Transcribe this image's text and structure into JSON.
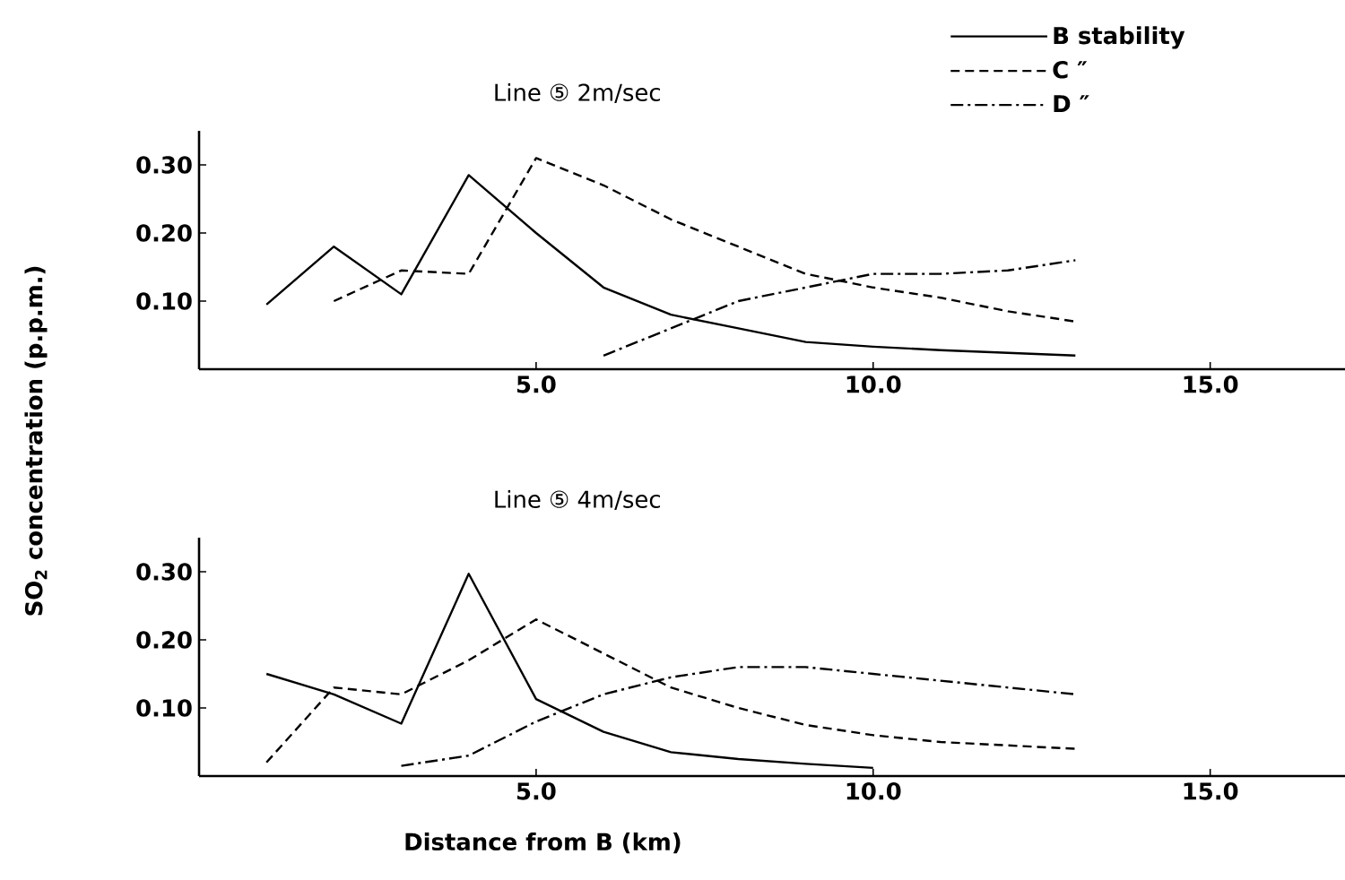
{
  "chart_data": [
    {
      "type": "line",
      "title": "Line ⑤    2m/sec",
      "ylabel": "SO$_{2}$ concentration (p.p.m.)",
      "xlim": [
        0,
        17
      ],
      "ylim": [
        0,
        0.35
      ],
      "xticks": [
        {
          "value": 5,
          "label": "5.0"
        },
        {
          "value": 10,
          "label": "10.0"
        },
        {
          "value": 15,
          "label": "15.0"
        }
      ],
      "yticks": [
        {
          "value": 0.1,
          "label": "0.10"
        },
        {
          "value": 0.2,
          "label": "0.20"
        },
        {
          "value": 0.3,
          "label": "0.30"
        }
      ],
      "grid": false,
      "legend": "top right",
      "marker": "none",
      "series": [
        {
          "name": "B stability",
          "color": "#000000",
          "line_style": "solid",
          "x": [
            1,
            2,
            3,
            4,
            5,
            6,
            7,
            8,
            9,
            10,
            11,
            12,
            13
          ],
          "values": [
            0.095,
            0.18,
            0.11,
            0.285,
            0.2,
            0.12,
            0.08,
            0.06,
            0.04,
            0.033,
            0.028,
            0.024,
            0.02
          ]
        },
        {
          "name": "C          ″",
          "color": "#000000",
          "line_style": "dashed",
          "x": [
            2,
            3,
            4,
            5,
            6,
            7,
            8,
            9,
            10,
            11,
            12,
            13
          ],
          "values": [
            0.1,
            0.145,
            0.14,
            0.31,
            0.27,
            0.22,
            0.18,
            0.14,
            0.12,
            0.105,
            0.085,
            0.07
          ]
        },
        {
          "name": "D          ″",
          "color": "#000000",
          "line_style": "dashdot",
          "x": [
            6,
            7,
            8,
            9,
            10,
            11,
            12,
            13
          ],
          "values": [
            0.02,
            0.06,
            0.1,
            0.12,
            0.14,
            0.14,
            0.145,
            0.16
          ]
        }
      ]
    },
    {
      "type": "line",
      "title": "Line ⑤    4m/sec",
      "xlabel": "Distance from B (km)",
      "xlim": [
        0,
        17
      ],
      "ylim": [
        0,
        0.35
      ],
      "xticks": [
        {
          "value": 5,
          "label": "5.0"
        },
        {
          "value": 10,
          "label": "10.0"
        },
        {
          "value": 15,
          "label": "15.0"
        }
      ],
      "yticks": [
        {
          "value": 0.1,
          "label": "0.10"
        },
        {
          "value": 0.2,
          "label": "0.20"
        },
        {
          "value": 0.3,
          "label": "0.30"
        }
      ],
      "grid": false,
      "marker": "none",
      "series": [
        {
          "color": "#000000",
          "line_style": "solid",
          "x": [
            1,
            2,
            3,
            4,
            5,
            6,
            7,
            8,
            9,
            10
          ],
          "values": [
            0.15,
            0.12,
            0.077,
            0.297,
            0.113,
            0.065,
            0.035,
            0.025,
            0.018,
            0.012
          ]
        },
        {
          "color": "#000000",
          "line_style": "dashed",
          "x": [
            1,
            2,
            3,
            4,
            5,
            6,
            7,
            8,
            9,
            10,
            11,
            12,
            13
          ],
          "values": [
            0.02,
            0.13,
            0.12,
            0.17,
            0.23,
            0.18,
            0.13,
            0.1,
            0.075,
            0.06,
            0.05,
            0.045,
            0.04
          ]
        },
        {
          "color": "#000000",
          "line_style": "dashdot",
          "x": [
            3,
            4,
            5,
            6,
            7,
            8,
            9,
            10,
            11,
            12,
            13
          ],
          "values": [
            0.015,
            0.03,
            0.08,
            0.12,
            0.145,
            0.16,
            0.16,
            0.15,
            0.14,
            0.13,
            0.12
          ]
        }
      ]
    }
  ]
}
